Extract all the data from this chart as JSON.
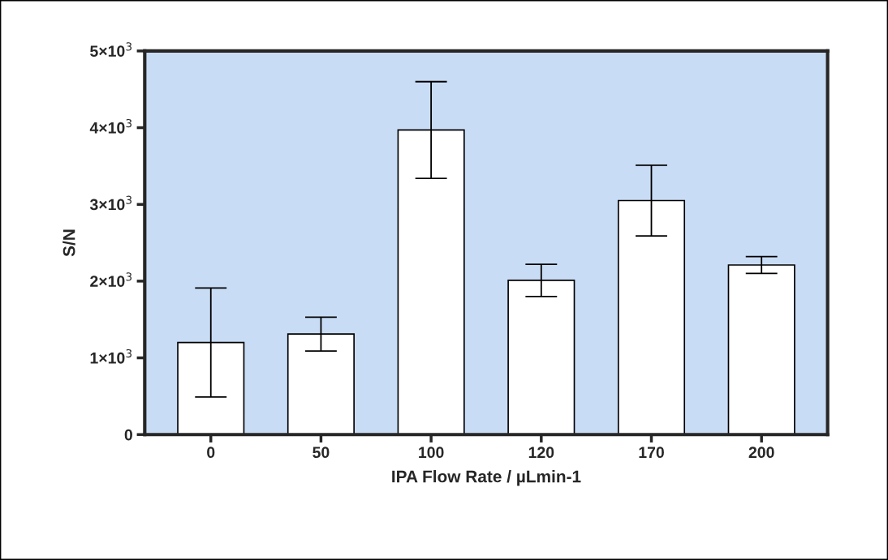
{
  "chart_data": {
    "type": "bar",
    "xlabel": "IPA Flow Rate / µLmin-1",
    "ylabel": "S/N",
    "categories": [
      "0",
      "50",
      "100",
      "120",
      "170",
      "200"
    ],
    "values": [
      1200,
      1310,
      3970,
      2010,
      3050,
      2210
    ],
    "errors": [
      710,
      220,
      630,
      210,
      460,
      110
    ],
    "color": "#ffffff",
    "ylim": [
      0,
      5000
    ],
    "yticks": [
      0,
      {
        "value": 1000,
        "label": "1×10$^{3}$"
      },
      {
        "value": 2000,
        "label": "2×10$^{3}$"
      },
      {
        "value": 3000,
        "label": "3×10$^{3}$"
      },
      {
        "value": 4000,
        "label": "4×10$^{3}$"
      },
      {
        "value": 5000,
        "label": "5×10$^{3}$"
      }
    ],
    "grid": false,
    "legend": false
  }
}
